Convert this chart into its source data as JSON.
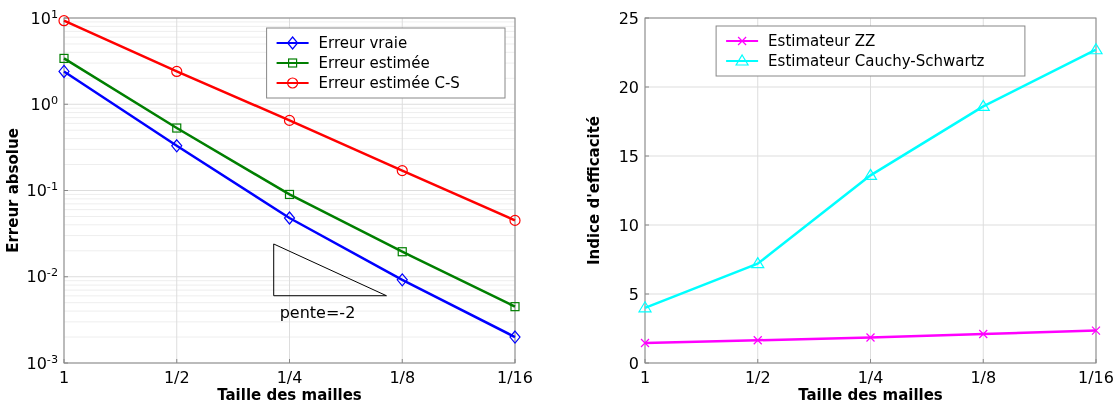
{
  "chart_data": [
    {
      "type": "line",
      "xlabel": "Taille des mailles",
      "ylabel": "Erreur absolue",
      "categories": [
        "1",
        "1/2",
        "1/4",
        "1/8",
        "1/16"
      ],
      "log": "y",
      "ylim": [
        0.001,
        10
      ],
      "yticks": [
        {
          "value": 0.001,
          "label": "10$^{-3}$"
        },
        {
          "value": 0.01,
          "label": "10$^{-2}$"
        },
        {
          "value": 0.1,
          "label": "10$^{-1}$"
        },
        {
          "value": 1,
          "label": "10$^{0}$"
        },
        {
          "value": 10,
          "label": "10$^{1}$"
        }
      ],
      "grid": true,
      "legend": "top right",
      "annotations": [
        "pente=-2"
      ],
      "series": [
        {
          "name": "Erreur vraie",
          "color": "#0000ff",
          "marker": "diamond",
          "values": [
            2.4,
            0.33,
            0.048,
            0.0092,
            0.002
          ]
        },
        {
          "name": "Erreur estimée",
          "color": "#007f00",
          "marker": "square",
          "values": [
            3.4,
            0.53,
            0.09,
            0.0195,
            0.0045
          ]
        },
        {
          "name": "Erreur estimée C-S",
          "color": "#ff0000",
          "marker": "circle",
          "values": [
            9.3,
            2.4,
            0.65,
            0.17,
            0.045
          ]
        }
      ]
    },
    {
      "type": "line",
      "xlabel": "Taille des mailles",
      "ylabel": "Indice d'efficacité",
      "categories": [
        "1",
        "1/2",
        "1/4",
        "1/8",
        "1/16"
      ],
      "ylim": [
        0,
        25
      ],
      "yticks": [
        0,
        5,
        10,
        15,
        20,
        25
      ],
      "grid": true,
      "legend": "top",
      "series": [
        {
          "name": "Estimateur ZZ",
          "color": "#ff00ff",
          "marker": "cross",
          "values": [
            1.45,
            1.65,
            1.85,
            2.1,
            2.35
          ]
        },
        {
          "name": "Estimateur Cauchy-Schwartz",
          "color": "#00ffff",
          "marker": "triangle",
          "values": [
            4.0,
            7.2,
            13.6,
            18.6,
            22.7
          ]
        }
      ]
    }
  ]
}
